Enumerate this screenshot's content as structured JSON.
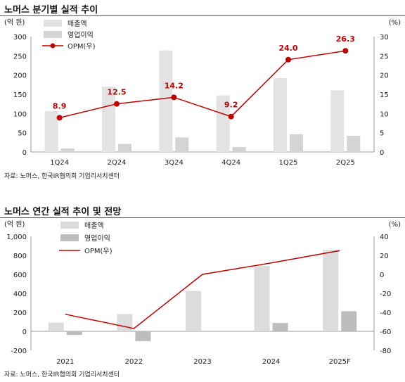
{
  "chart_data": [
    {
      "type": "bar",
      "title": "노머스 분기별 실적 추이",
      "left_unit": "(억 원)",
      "right_unit": "(%)",
      "categories": [
        "1Q24",
        "2Q24",
        "3Q24",
        "4Q24",
        "1Q25",
        "2Q25"
      ],
      "series": [
        {
          "name": "매출액",
          "kind": "bar",
          "axis": "left",
          "color": "#e3e3e3",
          "values": [
            106,
            170,
            264,
            147,
            192,
            160
          ]
        },
        {
          "name": "영업이익",
          "kind": "bar",
          "axis": "left",
          "color": "#d4d4d4",
          "values": [
            9,
            21,
            38,
            13,
            46,
            42
          ]
        },
        {
          "name": "OPM(우)",
          "kind": "line",
          "axis": "right",
          "color": "#c00000",
          "marker": true,
          "values": [
            8.9,
            12.5,
            14.2,
            9.2,
            24.0,
            26.3
          ],
          "labels": [
            "8.9",
            "12.5",
            "14.2",
            "9.2",
            "24.0",
            "26.3"
          ]
        }
      ],
      "ylim": [
        0,
        300
      ],
      "yticks": [
        "0",
        "50",
        "100",
        "150",
        "200",
        "250",
        "300"
      ],
      "y2lim": [
        0,
        30
      ],
      "y2ticks": [
        "0",
        "5",
        "10",
        "15",
        "20",
        "25",
        "30"
      ],
      "legend": "top-left",
      "source": "자료: 노머스, 한국IR협의회 기업리서치센터"
    },
    {
      "type": "bar",
      "title": "노머스 연간 실적 추이 및 전망",
      "left_unit": "(억 원)",
      "right_unit": "(%)",
      "categories": [
        "2021",
        "2022",
        "2023",
        "2024",
        "2025F"
      ],
      "series": [
        {
          "name": "매출액",
          "kind": "bar",
          "axis": "left",
          "color": "#dcdcdc",
          "values": [
            92,
            182,
            425,
            688,
            858
          ]
        },
        {
          "name": "영업이익",
          "kind": "bar",
          "axis": "left",
          "color": "#bdbdbd",
          "values": [
            -38,
            -103,
            0,
            88,
            212
          ]
        },
        {
          "name": "OPM(우)",
          "kind": "line",
          "axis": "right",
          "color": "#c00000",
          "marker": false,
          "values": [
            -42,
            -57,
            0,
            12,
            25
          ]
        }
      ],
      "ylim": [
        -200,
        1000
      ],
      "yticks": [
        "-200",
        "0",
        "200",
        "400",
        "600",
        "800",
        "1,000"
      ],
      "y2lim": [
        -80,
        40
      ],
      "y2ticks": [
        "-80",
        "-60",
        "-40",
        "-20",
        "0",
        "20",
        "40"
      ],
      "legend": "top-left",
      "source": "자료: 노머스, 한국IR협의회 기업리서치센터"
    }
  ]
}
